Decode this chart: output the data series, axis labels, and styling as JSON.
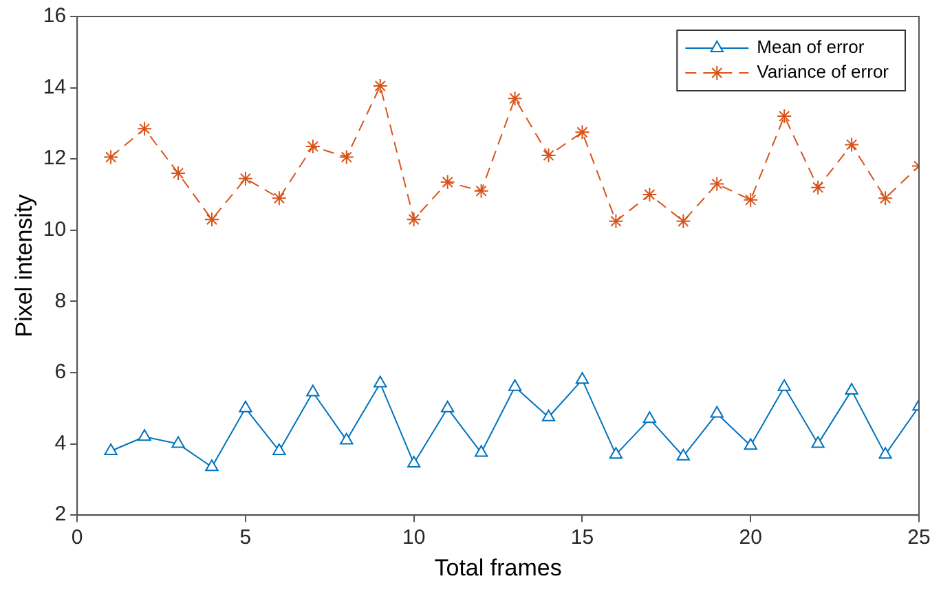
{
  "chart_data": {
    "type": "line",
    "xlabel": "Total frames",
    "ylabel": "Pixel intensity",
    "x": [
      1,
      2,
      3,
      4,
      5,
      6,
      7,
      8,
      9,
      10,
      11,
      12,
      13,
      14,
      15,
      16,
      17,
      18,
      19,
      20,
      21,
      22,
      23,
      24,
      25
    ],
    "xlim": [
      0,
      25
    ],
    "xticks": [
      0,
      5,
      10,
      15,
      20,
      25
    ],
    "ylim": [
      2,
      16
    ],
    "yticks": [
      2,
      4,
      6,
      8,
      10,
      12,
      14,
      16
    ],
    "grid": false,
    "legend": "top right",
    "series": [
      {
        "name": "Mean of error",
        "color": "#0072bd",
        "marker": "triangle",
        "line_style": "solid",
        "values": [
          3.8,
          4.2,
          4.0,
          3.35,
          5.0,
          3.8,
          5.45,
          4.1,
          5.7,
          3.45,
          5.0,
          3.75,
          5.6,
          4.75,
          5.8,
          3.7,
          4.7,
          3.65,
          4.85,
          3.95,
          5.6,
          4.0,
          5.5,
          3.7,
          5.05
        ]
      },
      {
        "name": "Variance of error",
        "color": "#d95319",
        "marker": "cross",
        "line_style": "dashed",
        "values": [
          12.05,
          12.85,
          11.6,
          10.3,
          11.45,
          10.9,
          12.35,
          12.05,
          14.05,
          10.3,
          11.35,
          11.1,
          13.7,
          12.1,
          12.75,
          10.25,
          11.0,
          10.25,
          11.3,
          10.85,
          13.2,
          11.2,
          12.4,
          10.9,
          11.8
        ]
      }
    ]
  }
}
